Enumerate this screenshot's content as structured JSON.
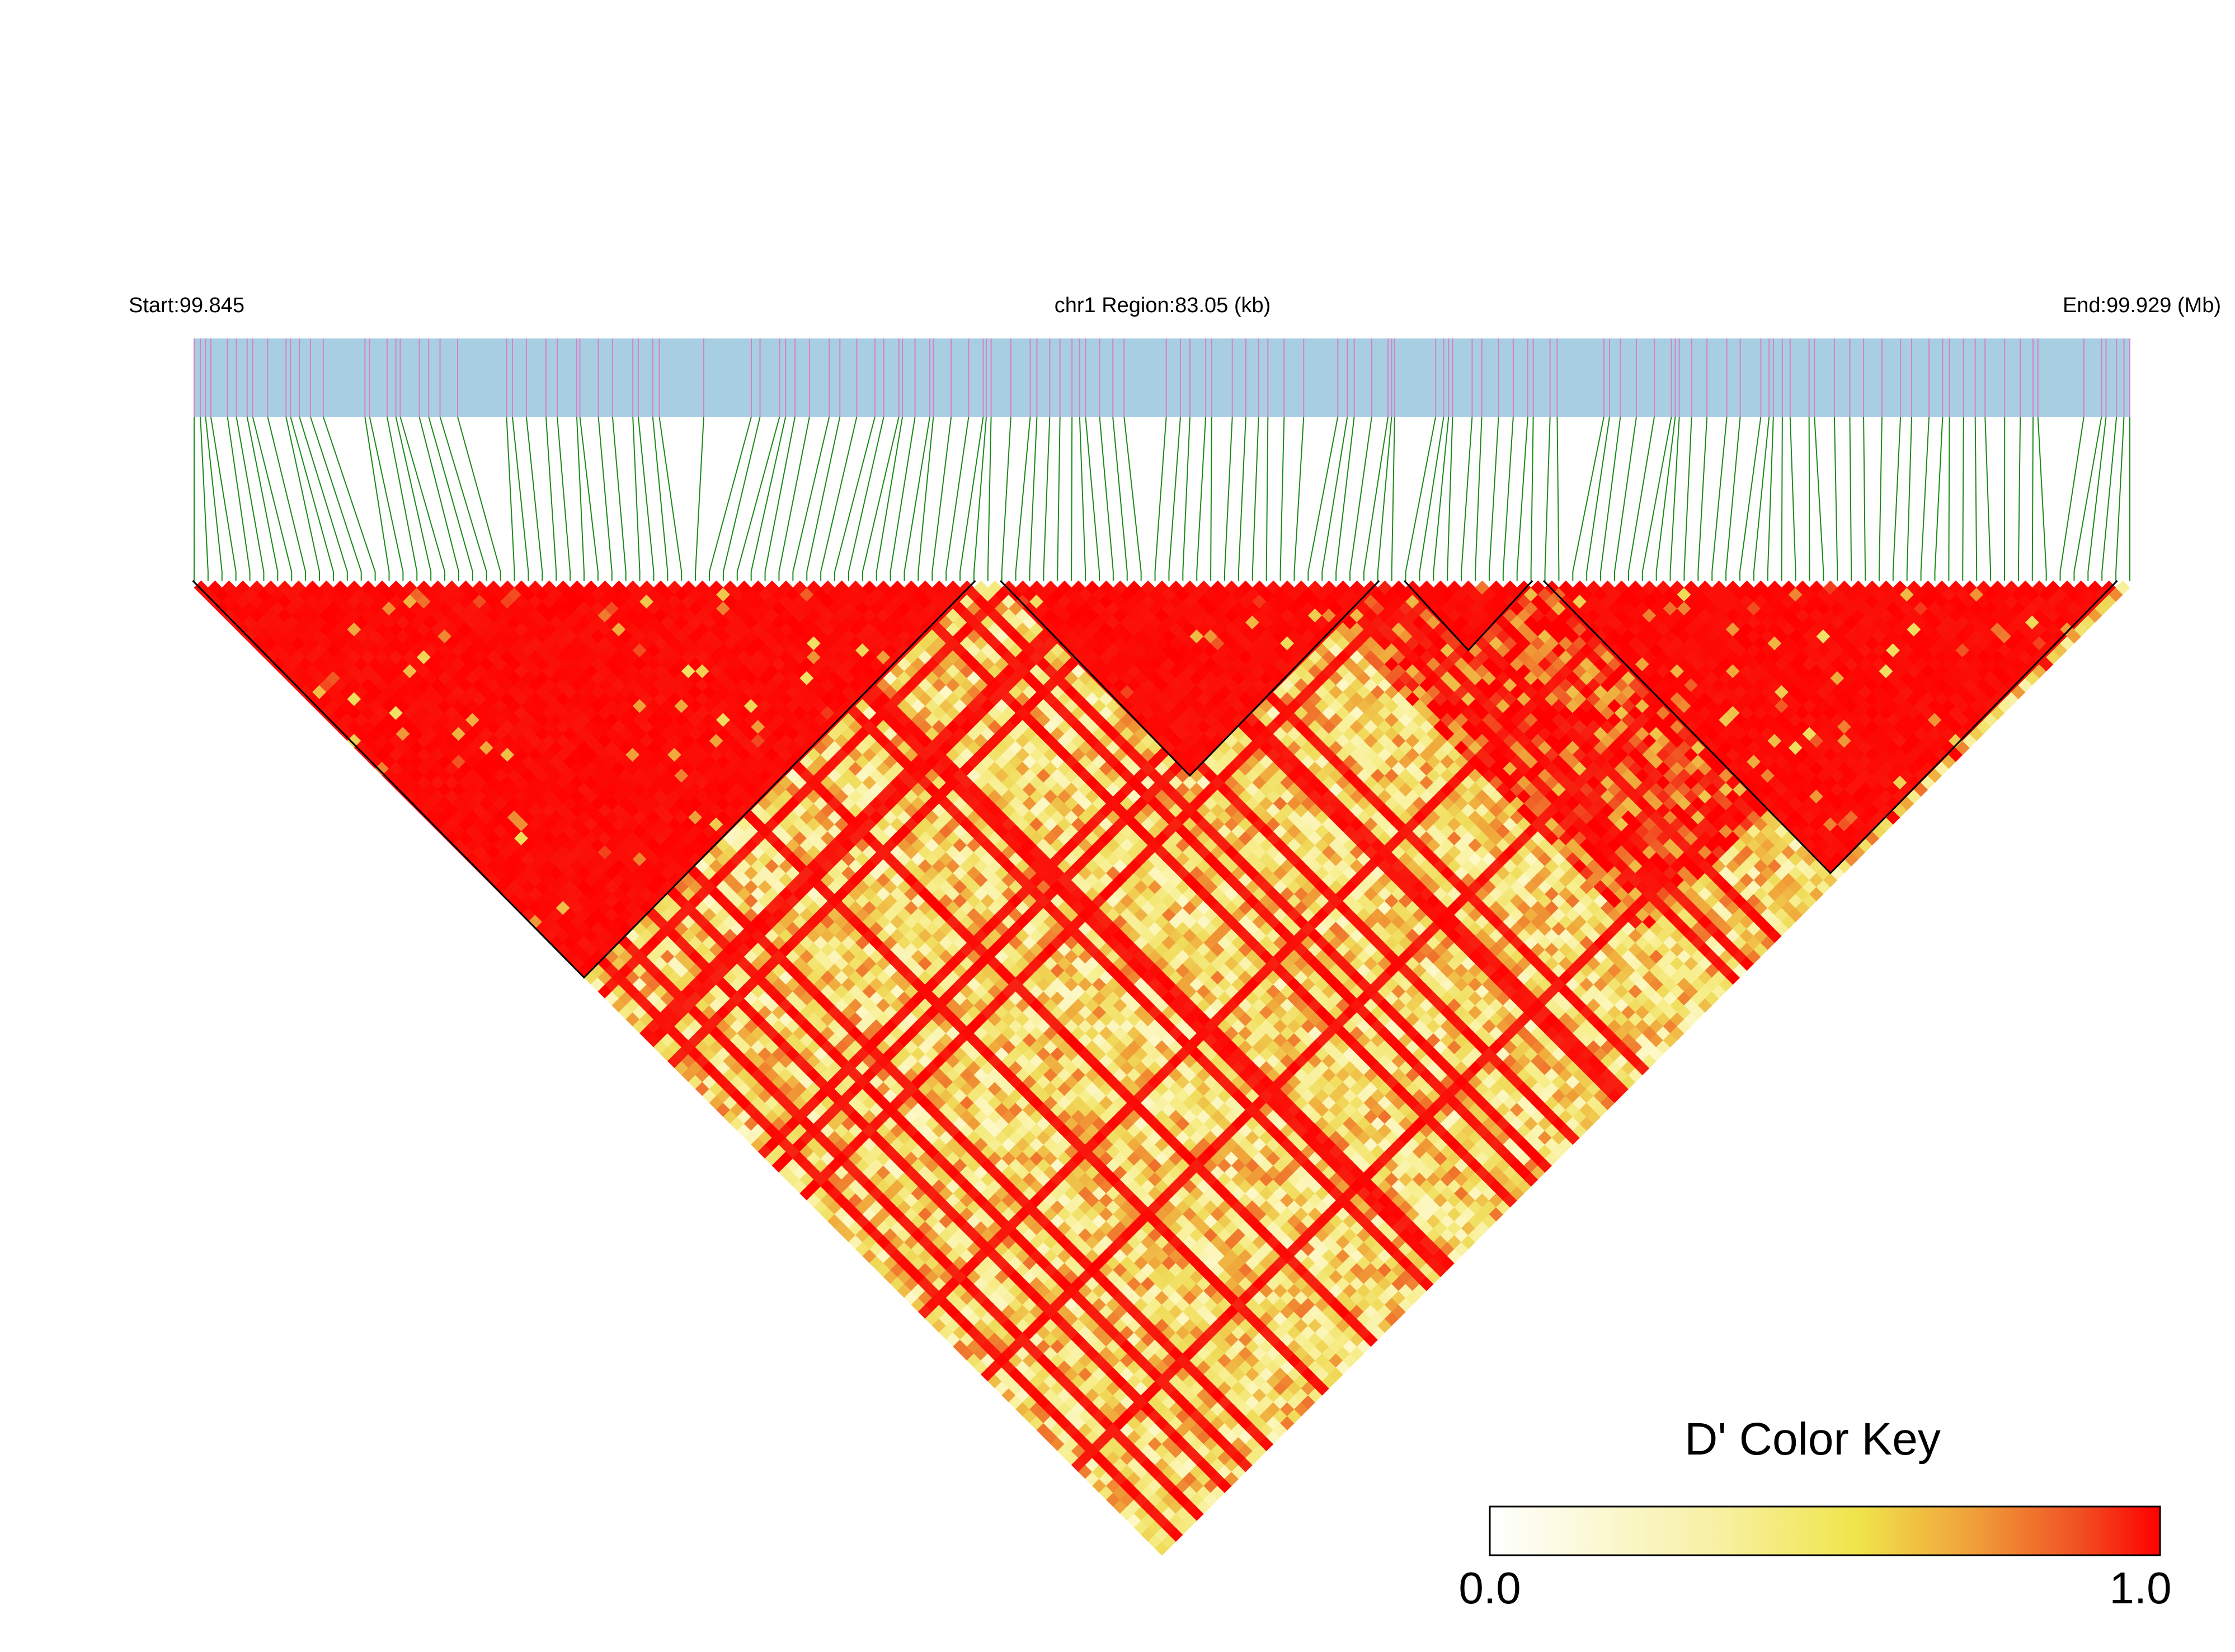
{
  "header": {
    "start_label": "Start:99.845",
    "region_label": "chr1 Region:83.05 (kb)",
    "end_label": "End:99.929 (Mb)"
  },
  "legend": {
    "title": "D' Color Key",
    "min_label": "0.0",
    "max_label": "1.0",
    "colors": [
      "#ffffff",
      "#fdf8d0",
      "#f8f0a0",
      "#f0e860",
      "#f0c040",
      "#f08c30",
      "#f05020",
      "#ff0000"
    ]
  },
  "chart_data": {
    "type": "heatmap",
    "title": "",
    "region": {
      "chromosome": "chr1",
      "start_mb": 99.845,
      "end_mb": 99.929,
      "length_kb": 83.05
    },
    "n_snps": 140,
    "value_range": [
      0.0,
      1.0
    ],
    "haplotype_blocks": [
      {
        "first_snp": 1,
        "last_snp": 57
      },
      {
        "first_snp": 59,
        "last_snp": 86
      },
      {
        "first_snp": 88,
        "last_snp": 97
      },
      {
        "first_snp": 98,
        "last_snp": 139
      }
    ],
    "ld_regions": [
      {
        "snps_from": 1,
        "snps_to": 57,
        "mean_dprime": 0.97
      },
      {
        "snps_from": 59,
        "snps_to": 86,
        "mean_dprime": 0.98
      },
      {
        "snps_from": 88,
        "snps_to": 97,
        "mean_dprime": 0.98
      },
      {
        "snps_from": 98,
        "snps_to": 139,
        "mean_dprime": 0.95
      },
      {
        "snps_from": 80,
        "snps_to": 130,
        "mean_dprime": 0.88
      },
      {
        "snps_from": 1,
        "snps_to": 140,
        "mean_dprime": 0.55
      }
    ],
    "colors": {
      "track_fill": "#a8cfe1",
      "snp_tick": "#d87fc9",
      "connector": "#1a8a1a",
      "block_outline": "#000000"
    }
  }
}
